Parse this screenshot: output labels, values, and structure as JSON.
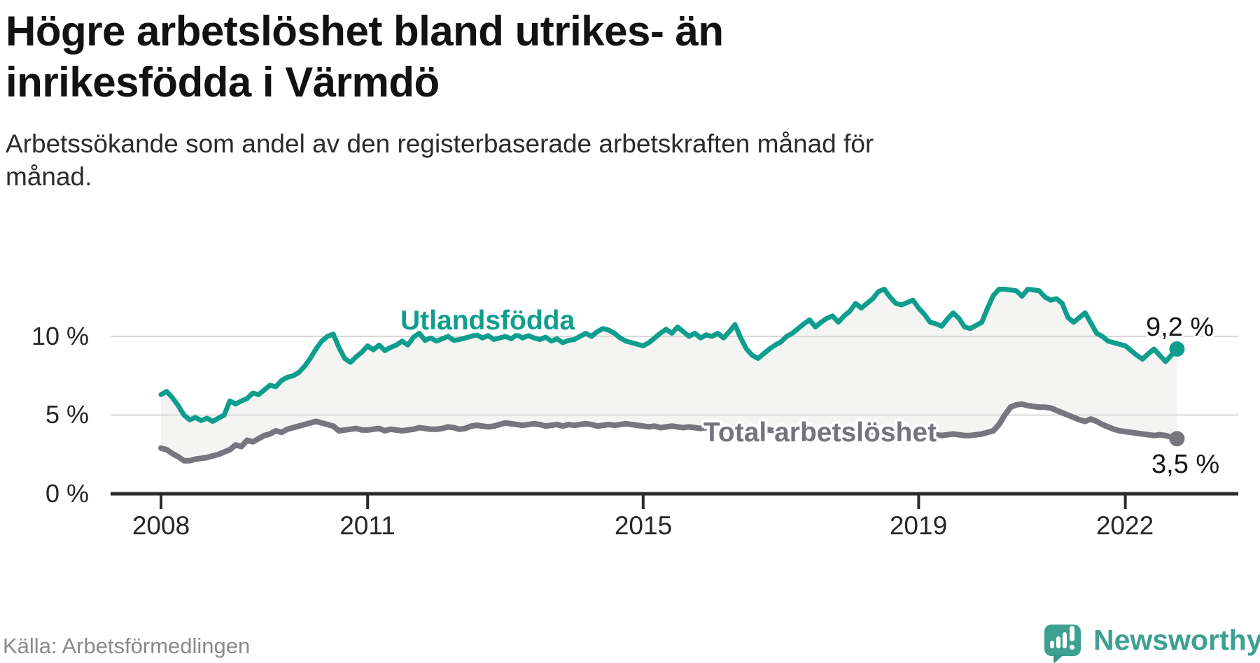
{
  "title": {
    "line1": "Högre arbetslöshet bland utrikes- än",
    "line2": "inrikesfödda i Värmdö"
  },
  "subtitle": {
    "line1": "Arbetssökande som andel av den registerbaserade arbetskraften månad för",
    "line2": "månad."
  },
  "source": "Källa: Arbetsförmedlingen",
  "logo": {
    "text": "Newsworthy",
    "icon": "newsworthy-speech-bubble-barchart-icon",
    "color": "#3ca092"
  },
  "chart_data": {
    "type": "line",
    "title": "Högre arbetslöshet bland utrikes- än inrikesfödda i Värmdö",
    "xlabel": "",
    "ylabel": "",
    "x_unit": "month",
    "x_start": "2008-01",
    "x_end": "2022-10",
    "x_tick_labels": [
      "2008",
      "2011",
      "2015",
      "2019",
      "2022"
    ],
    "x_tick_month_index": [
      0,
      36,
      84,
      132,
      168
    ],
    "y_tick_labels": [
      "0 %",
      "5 %",
      "10 %"
    ],
    "y_tick_values": [
      0,
      5,
      10
    ],
    "ylim": [
      0,
      14.5
    ],
    "grid": "horizontal",
    "gridline_color": "#d8d8d8",
    "axis_color": "#2b2b2b",
    "fill_between_color": "#f4f4f3",
    "series": [
      {
        "name": "Utlandsfödda",
        "color": "#0f9e8d",
        "end_value": 9.2,
        "end_label": "9,2 %",
        "values": [
          6.3,
          6.5,
          6.1,
          5.6,
          5.0,
          4.7,
          4.85,
          4.65,
          4.8,
          4.6,
          4.8,
          5.0,
          5.9,
          5.7,
          5.9,
          6.05,
          6.4,
          6.3,
          6.6,
          6.9,
          6.8,
          7.2,
          7.4,
          7.5,
          7.7,
          8.1,
          8.6,
          9.2,
          9.7,
          10.0,
          10.15,
          9.3,
          8.6,
          8.35,
          8.7,
          9.0,
          9.4,
          9.15,
          9.45,
          9.1,
          9.3,
          9.45,
          9.7,
          9.45,
          9.95,
          10.2,
          9.75,
          9.9,
          9.7,
          9.85,
          10.0,
          9.75,
          9.8,
          9.9,
          10.0,
          10.1,
          9.9,
          10.05,
          9.8,
          9.9,
          10.0,
          9.85,
          10.1,
          9.9,
          10.05,
          9.9,
          9.8,
          9.95,
          9.7,
          9.85,
          9.6,
          9.75,
          9.8,
          10.0,
          10.2,
          10.0,
          10.3,
          10.5,
          10.4,
          10.2,
          9.9,
          9.7,
          9.6,
          9.5,
          9.4,
          9.6,
          9.9,
          10.2,
          10.45,
          10.2,
          10.6,
          10.3,
          10.0,
          10.2,
          9.9,
          10.1,
          10.0,
          10.2,
          9.9,
          10.3,
          10.75,
          9.9,
          9.2,
          8.8,
          8.6,
          8.9,
          9.2,
          9.45,
          9.65,
          10.0,
          10.2,
          10.5,
          10.8,
          11.05,
          10.6,
          10.9,
          11.15,
          11.3,
          10.9,
          11.3,
          11.6,
          12.1,
          11.8,
          12.1,
          12.4,
          12.85,
          13.0,
          12.5,
          12.1,
          12.0,
          12.15,
          12.3,
          11.8,
          11.4,
          10.9,
          10.8,
          10.65,
          11.1,
          11.5,
          11.15,
          10.6,
          10.5,
          10.7,
          10.9,
          11.8,
          12.6,
          13.0,
          13.0,
          12.95,
          12.9,
          12.55,
          13.0,
          12.95,
          12.9,
          12.5,
          12.3,
          12.4,
          12.1,
          11.2,
          10.9,
          11.2,
          11.5,
          10.85,
          10.2,
          10.0,
          9.7,
          9.6,
          9.5,
          9.4,
          9.1,
          8.8,
          8.55,
          8.9,
          9.2,
          8.8,
          8.4,
          8.8,
          9.2
        ]
      },
      {
        "name": "Total arbetslöshet",
        "color": "#77767e",
        "end_value": 3.5,
        "end_label": "3,5 %",
        "values": [
          2.9,
          2.8,
          2.55,
          2.35,
          2.1,
          2.1,
          2.2,
          2.25,
          2.3,
          2.4,
          2.5,
          2.65,
          2.8,
          3.1,
          3.0,
          3.4,
          3.3,
          3.5,
          3.7,
          3.8,
          4.0,
          3.9,
          4.1,
          4.2,
          4.3,
          4.4,
          4.5,
          4.6,
          4.5,
          4.4,
          4.3,
          4.0,
          4.05,
          4.1,
          4.15,
          4.05,
          4.05,
          4.1,
          4.15,
          4.0,
          4.1,
          4.05,
          4.0,
          4.05,
          4.1,
          4.2,
          4.15,
          4.1,
          4.1,
          4.15,
          4.25,
          4.2,
          4.1,
          4.15,
          4.3,
          4.35,
          4.3,
          4.25,
          4.3,
          4.4,
          4.5,
          4.45,
          4.4,
          4.35,
          4.4,
          4.45,
          4.4,
          4.3,
          4.35,
          4.4,
          4.3,
          4.4,
          4.35,
          4.4,
          4.45,
          4.4,
          4.3,
          4.35,
          4.4,
          4.35,
          4.4,
          4.45,
          4.4,
          4.35,
          4.3,
          4.25,
          4.3,
          4.2,
          4.25,
          4.3,
          4.25,
          4.2,
          4.25,
          4.2,
          4.15,
          4.2,
          4.25,
          4.3,
          4.2,
          4.15,
          4.2,
          4.1,
          4.05,
          4.0,
          4.05,
          4.1,
          4.05,
          4.0,
          4.0,
          4.05,
          4.1,
          4.05,
          4.0,
          4.05,
          4.1,
          4.05,
          4.0,
          3.95,
          4.0,
          4.05,
          4.1,
          4.05,
          4.0,
          3.95,
          3.9,
          3.95,
          4.0,
          3.95,
          3.9,
          3.85,
          3.9,
          3.85,
          3.8,
          3.85,
          3.8,
          3.75,
          3.7,
          3.75,
          3.8,
          3.75,
          3.7,
          3.7,
          3.75,
          3.8,
          3.9,
          4.0,
          4.4,
          5.0,
          5.5,
          5.65,
          5.7,
          5.6,
          5.55,
          5.5,
          5.5,
          5.45,
          5.3,
          5.15,
          5.0,
          4.85,
          4.7,
          4.6,
          4.75,
          4.6,
          4.4,
          4.25,
          4.1,
          4.0,
          3.95,
          3.9,
          3.85,
          3.8,
          3.75,
          3.7,
          3.75,
          3.7,
          3.6,
          3.5
        ]
      }
    ]
  }
}
